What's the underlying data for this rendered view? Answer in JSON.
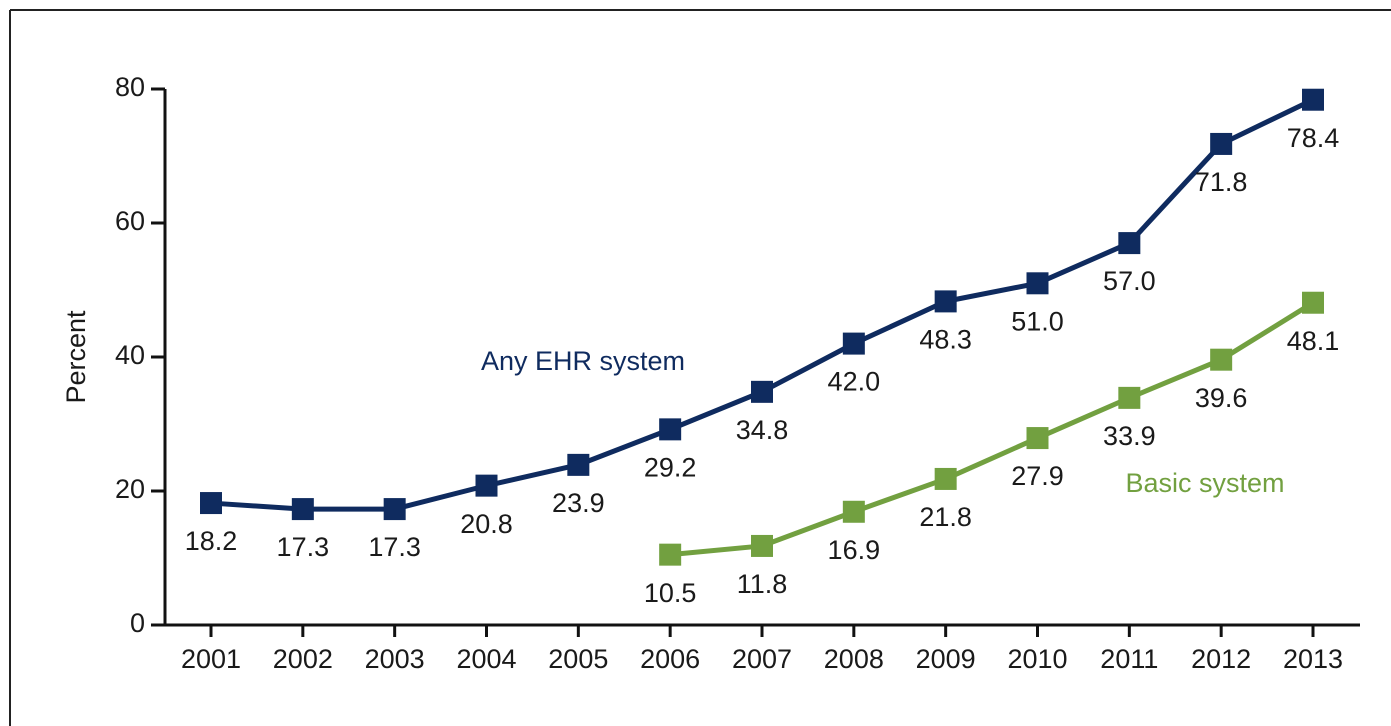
{
  "chart_data": {
    "type": "line",
    "y_label": "Percent",
    "categories": [
      "2001",
      "2002",
      "2003",
      "2004",
      "2005",
      "2006",
      "2007",
      "2008",
      "2009",
      "2010",
      "2011",
      "2012",
      "2013"
    ],
    "series": [
      {
        "name": "Any EHR system",
        "color": "#0f2b5f",
        "values": [
          18.2,
          17.3,
          17.3,
          20.8,
          23.9,
          29.2,
          34.8,
          42.0,
          48.3,
          51.0,
          57.0,
          71.8,
          78.4
        ],
        "value_labels": [
          "18.2",
          "17.3",
          "17.3",
          "20.8",
          "23.9",
          "29.2",
          "34.8",
          "42.0",
          "48.3",
          "51.0",
          "57.0",
          "71.8",
          "78.4"
        ]
      },
      {
        "name": "Basic system",
        "color": "#72a040",
        "values": [
          null,
          null,
          null,
          null,
          null,
          10.5,
          11.8,
          16.9,
          21.8,
          27.9,
          33.9,
          39.6,
          48.1
        ],
        "value_labels": [
          null,
          null,
          null,
          null,
          null,
          "10.5",
          "11.8",
          "16.9",
          "21.8",
          "27.9",
          "33.9",
          "39.6",
          "48.1"
        ]
      }
    ],
    "ylim": [
      0,
      80
    ],
    "yticks": [
      0,
      20,
      40,
      60,
      80
    ],
    "grid": false
  }
}
